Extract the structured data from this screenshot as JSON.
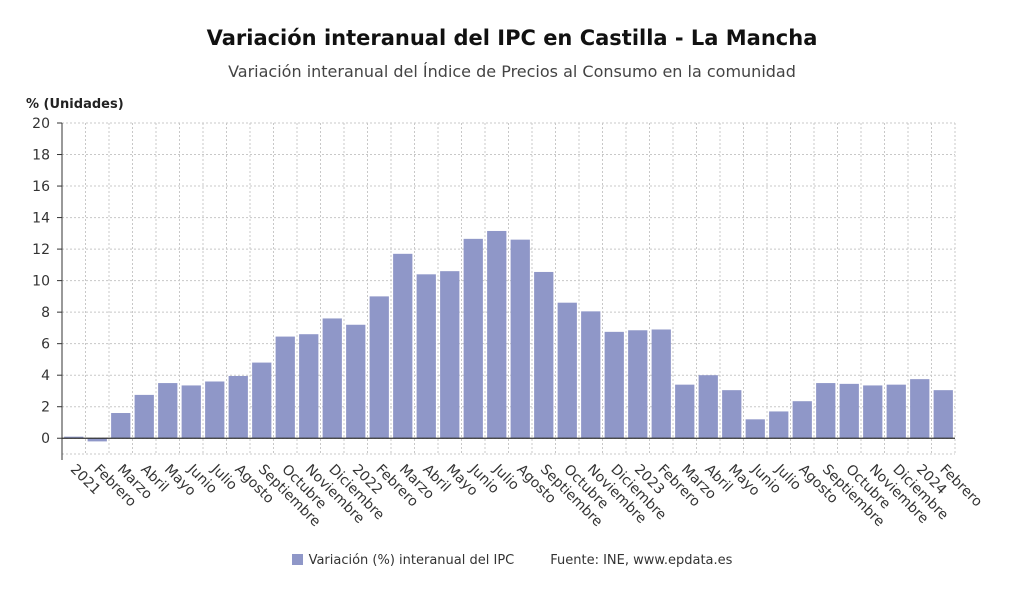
{
  "colors": {
    "bar": "#8f97c8",
    "grid": "#c8c8c8",
    "axis": "#333333"
  },
  "chart_data": {
    "type": "bar",
    "title": "Variación interanual del IPC en Castilla - La Mancha",
    "subtitle": "Variación interanual del Índice de Precios al Consumo en la comunidad",
    "ylabel": "% (Unidades)",
    "ylim": [
      -1,
      20
    ],
    "yticks": [
      0,
      2,
      4,
      6,
      8,
      10,
      12,
      14,
      16,
      18,
      20
    ],
    "grid": true,
    "legend_position": "bottom",
    "categories": [
      "2021",
      "Febrero",
      "Marzo",
      "Abril",
      "Mayo",
      "Junio",
      "Julio",
      "Agosto",
      "Septiembre",
      "Octubre",
      "Noviembre",
      "Diciembre",
      "2022",
      "Febrero",
      "Marzo",
      "Abril",
      "Mayo",
      "Junio",
      "Julio",
      "Agosto",
      "Septiembre",
      "Octubre",
      "Noviembre",
      "Diciembre",
      "2023",
      "Febrero",
      "Marzo",
      "Abril",
      "Mayo",
      "Junio",
      "Julio",
      "Agosto",
      "Septiembre",
      "Octubre",
      "Noviembre",
      "Diciembre",
      "2024",
      "Febrero"
    ],
    "series": [
      {
        "name": "Variación (%) interanual del IPC",
        "values": [
          0.1,
          -0.2,
          1.6,
          2.75,
          3.5,
          3.35,
          3.6,
          3.95,
          4.8,
          6.45,
          6.6,
          7.6,
          7.2,
          9.0,
          11.7,
          10.4,
          10.6,
          12.65,
          13.15,
          12.6,
          10.55,
          8.6,
          8.05,
          6.75,
          6.85,
          6.9,
          3.4,
          4.0,
          3.05,
          1.2,
          1.7,
          2.35,
          3.5,
          3.45,
          3.35,
          3.4,
          3.75,
          3.05
        ]
      }
    ]
  },
  "legend": {
    "series_label": "Variación (%) interanual del IPC",
    "source": "Fuente: INE, www.epdata.es"
  }
}
